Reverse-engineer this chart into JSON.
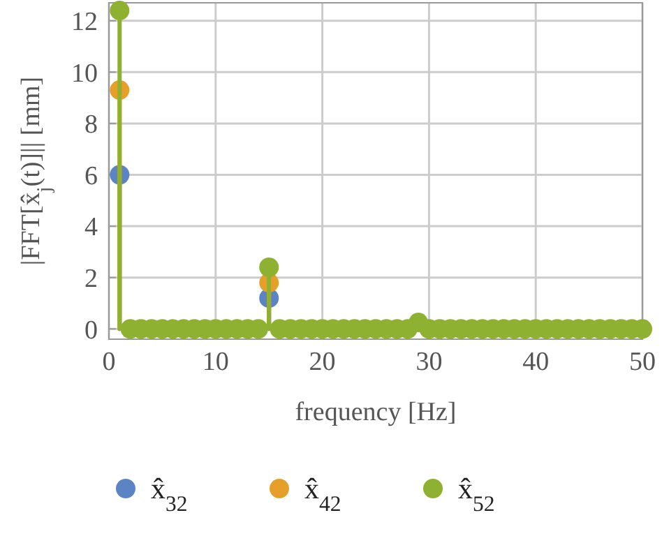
{
  "chart_data": {
    "type": "lollipop",
    "xlabel": "frequency [Hz]",
    "ylabel": "|FFT[x̂$_{j}$(t)]|| [mm]",
    "x": [
      1,
      2,
      3,
      4,
      5,
      6,
      7,
      8,
      9,
      10,
      11,
      12,
      13,
      14,
      15,
      16,
      17,
      18,
      19,
      20,
      21,
      22,
      23,
      24,
      25,
      26,
      27,
      28,
      29,
      30,
      31,
      32,
      33,
      34,
      35,
      36,
      37,
      38,
      39,
      40,
      41,
      42,
      43,
      44,
      45,
      46,
      47,
      48,
      49,
      50
    ],
    "series": [
      {
        "name": "x̂$_{32}$",
        "color": "#5b84c4",
        "values": [
          6.0,
          null,
          null,
          null,
          null,
          null,
          null,
          null,
          null,
          null,
          null,
          null,
          null,
          null,
          1.2,
          null,
          null,
          null,
          null,
          null,
          null,
          null,
          null,
          null,
          null,
          null,
          null,
          null,
          null,
          null,
          null,
          null,
          null,
          null,
          null,
          null,
          null,
          null,
          null,
          null,
          null,
          null,
          null,
          null,
          null,
          null,
          null,
          null,
          null,
          null
        ]
      },
      {
        "name": "x̂$_{42}$",
        "color": "#e6a02a",
        "values": [
          9.3,
          null,
          null,
          null,
          null,
          null,
          null,
          null,
          null,
          null,
          null,
          null,
          null,
          null,
          1.8,
          null,
          null,
          null,
          null,
          null,
          null,
          null,
          null,
          null,
          null,
          null,
          null,
          null,
          null,
          null,
          null,
          null,
          null,
          null,
          null,
          null,
          null,
          null,
          null,
          null,
          null,
          null,
          null,
          null,
          null,
          null,
          null,
          null,
          null,
          null
        ]
      },
      {
        "name": "x̂$_{52}$",
        "color": "#8fb131",
        "values": [
          12.4,
          0,
          0,
          0,
          0,
          0,
          0,
          0,
          0,
          0,
          0,
          0,
          0,
          0,
          2.4,
          0,
          0,
          0,
          0,
          0,
          0,
          0,
          0,
          0,
          0,
          0,
          0,
          0,
          0.25,
          0,
          0,
          0,
          0,
          0,
          0,
          0,
          0,
          0,
          0,
          0,
          0,
          0,
          0,
          0,
          0,
          0,
          0,
          0,
          0,
          0
        ]
      }
    ],
    "xlim": [
      0,
      50
    ],
    "xticks": [
      0,
      10,
      20,
      30,
      40,
      50
    ],
    "ylim": [
      -0.4,
      12.7
    ],
    "yticks": [
      0,
      2,
      4,
      6,
      8,
      10,
      12
    ],
    "grid": true,
    "legend": "bottom",
    "marker": "circle"
  }
}
